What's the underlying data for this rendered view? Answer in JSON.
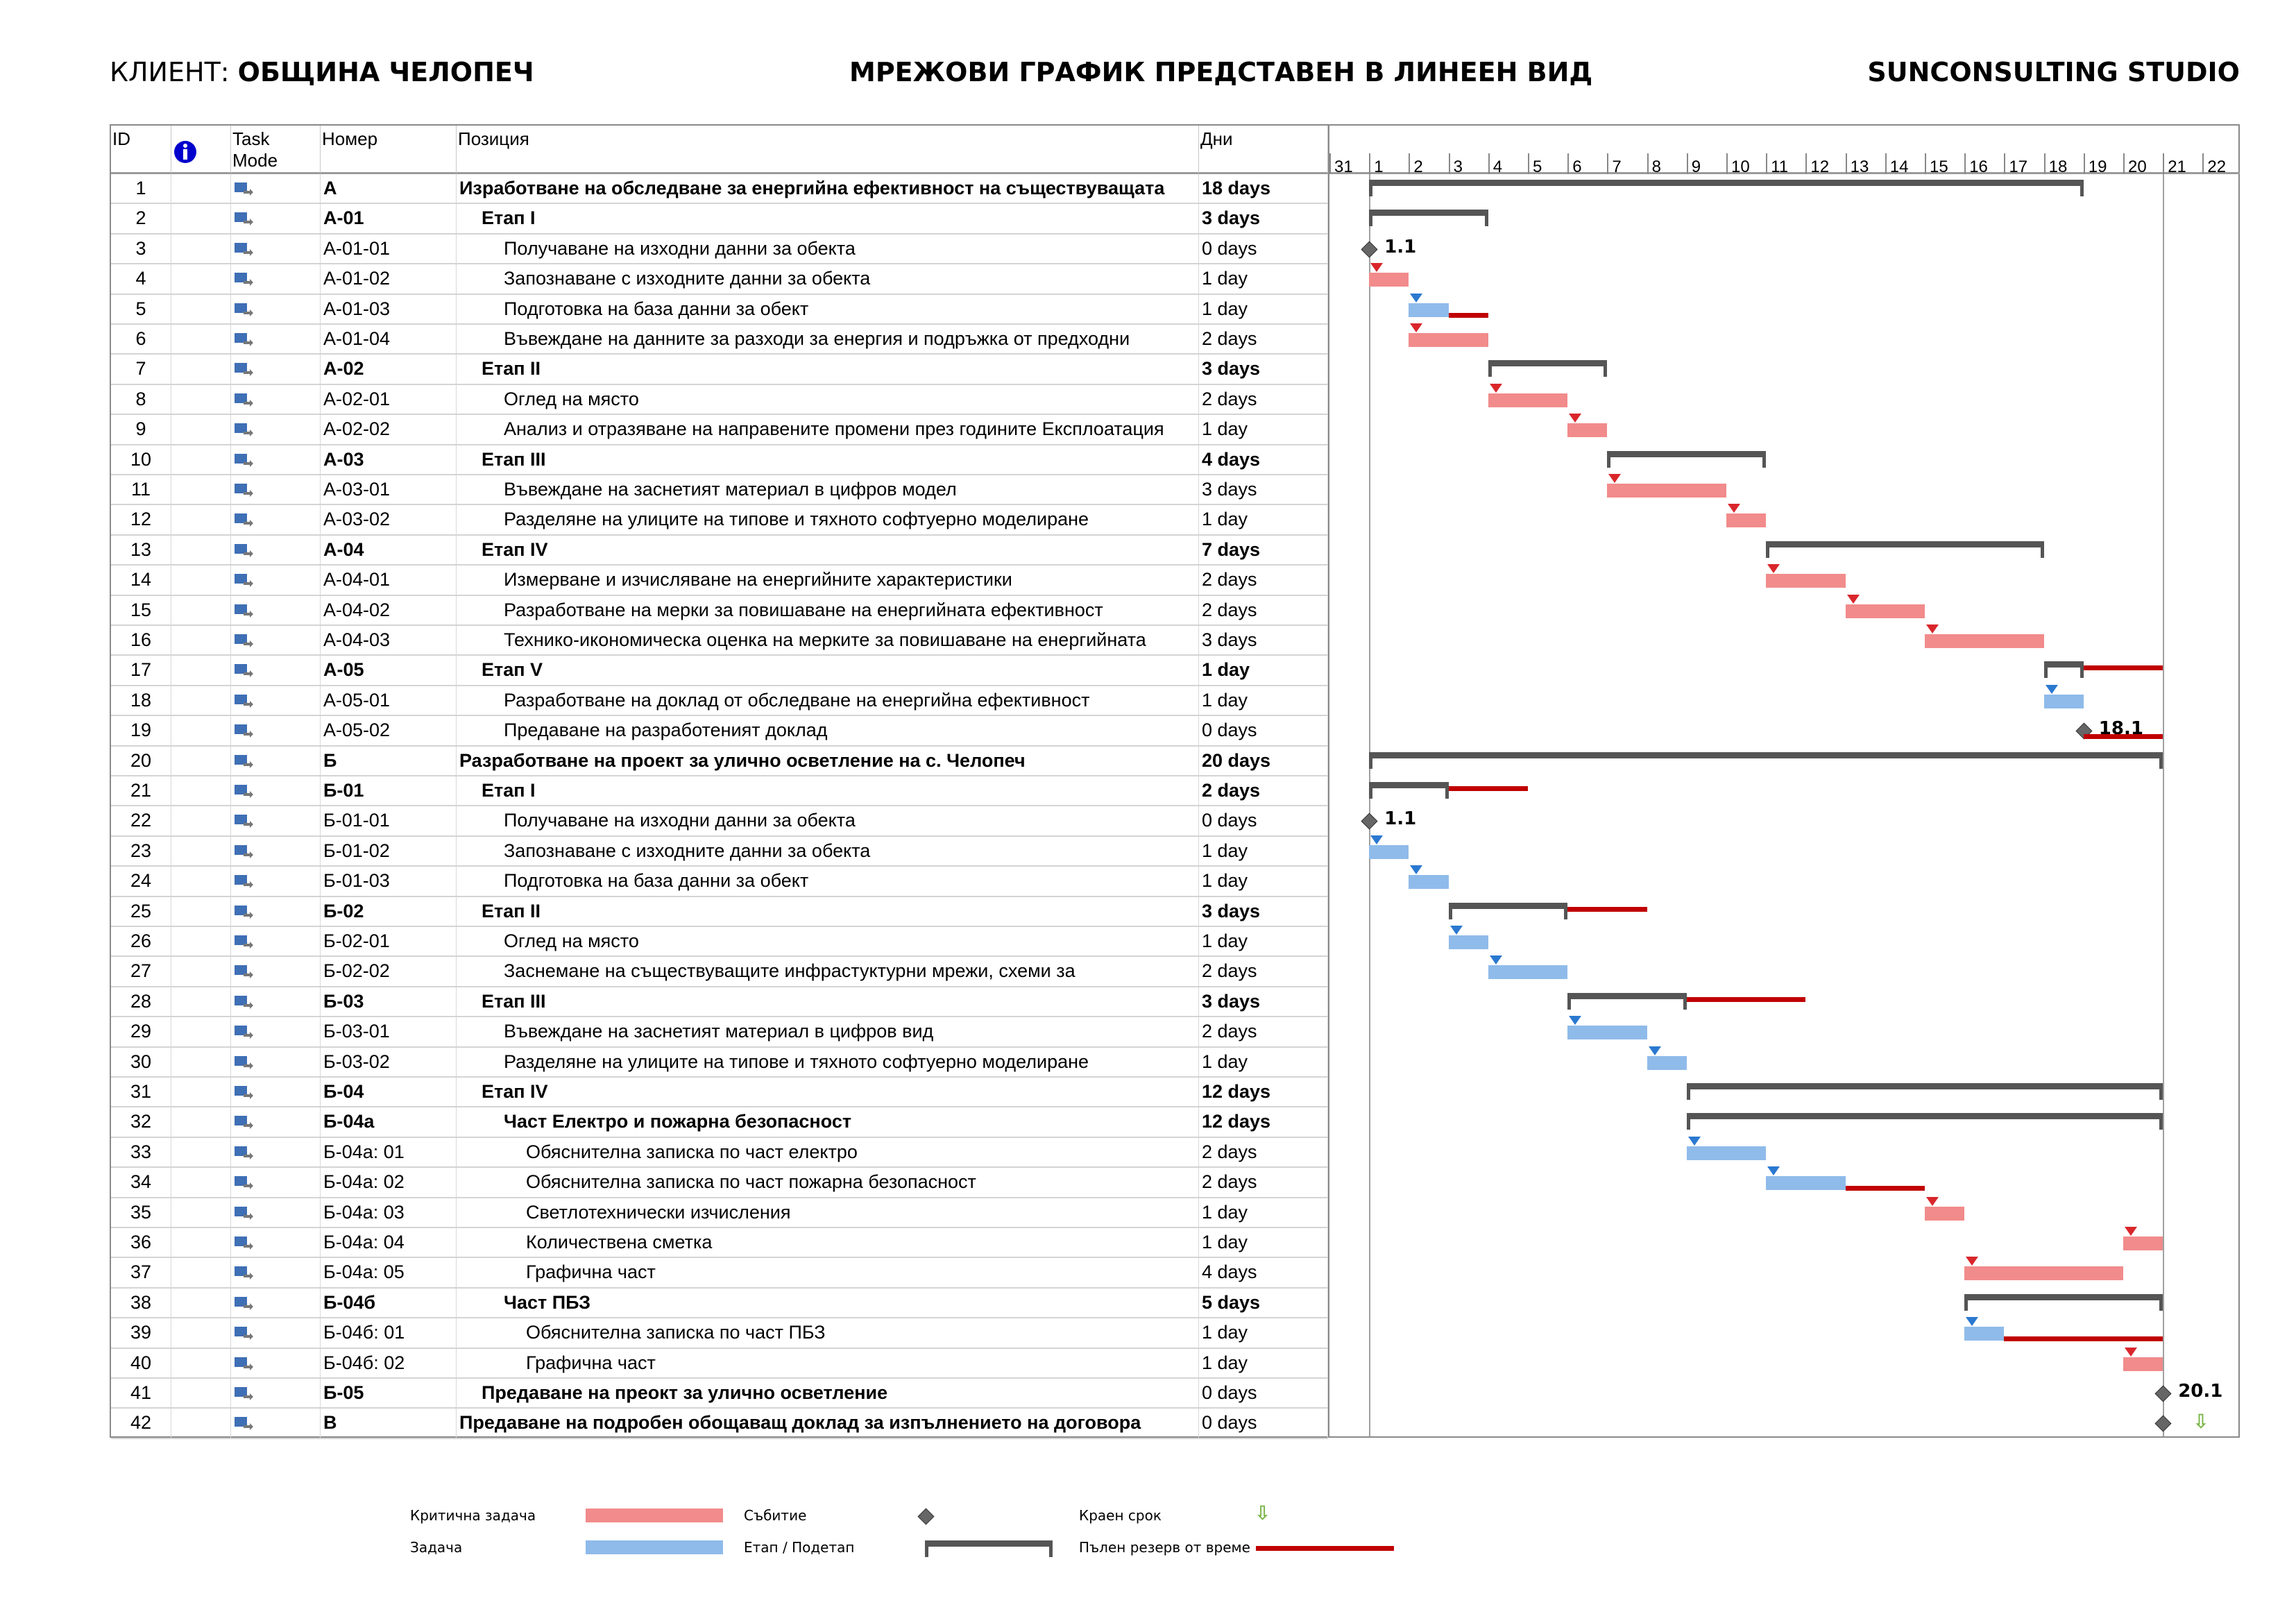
{
  "header": {
    "client_prefix": "КЛИЕНТ: ",
    "client_name": "ОБЩИНА ЧЕЛОПЕЧ",
    "center_title": "МРЕЖОВИ ГРАФИК ПРЕДСТАВЕН В ЛИНЕЕН ВИД",
    "company": "SUNCONSULTING STUDIO"
  },
  "columns": {
    "id": "ID",
    "task_mode": "Task Mode",
    "number": "Номер",
    "position": "Позиция",
    "days": "Дни"
  },
  "timescale": [
    "31",
    "1",
    "2",
    "3",
    "4",
    "5",
    "6",
    "7",
    "8",
    "9",
    "10",
    "11",
    "12",
    "13",
    "14",
    "15",
    "16",
    "17",
    "18",
    "19",
    "20",
    "21",
    "22"
  ],
  "colors": {
    "critical": "#f28b8b",
    "task": "#8fbbea",
    "summary": "#555555",
    "slack": "#c00000",
    "deadline": "#7ab648",
    "info": "#0000cc"
  },
  "rows": [
    {
      "id": "1",
      "num": "А",
      "name": "Изработване на обследване за енергийна ефективност на съществуващата",
      "days": "18 days",
      "level": 0,
      "bold": true,
      "bar": {
        "type": "summary",
        "start": 1,
        "end": 19
      }
    },
    {
      "id": "2",
      "num": "А-01",
      "name": "Етап I",
      "days": "3 days",
      "level": 1,
      "bold": true,
      "bar": {
        "type": "summary",
        "start": 1,
        "end": 4
      }
    },
    {
      "id": "3",
      "num": "А-01-01",
      "name": "Получаване на изходни данни за обекта",
      "days": "0 days",
      "level": 2,
      "bold": false,
      "bar": {
        "type": "milestone",
        "start": 1,
        "label": "1.1"
      }
    },
    {
      "id": "4",
      "num": "А-01-02",
      "name": "Запознаване с изходните данни за обекта",
      "days": "1 day",
      "level": 2,
      "bold": false,
      "bar": {
        "type": "critical",
        "start": 1,
        "end": 2
      }
    },
    {
      "id": "5",
      "num": "А-01-03",
      "name": "Подготовка на база данни за обект",
      "days": "1 day",
      "level": 2,
      "bold": false,
      "bar": {
        "type": "task",
        "start": 2,
        "end": 3,
        "slack_end": 4
      }
    },
    {
      "id": "6",
      "num": "А-01-04",
      "name": "Въвеждане на данните за разходи за енергия и подръжка от предходни",
      "days": "2 days",
      "level": 2,
      "bold": false,
      "bar": {
        "type": "critical",
        "start": 2,
        "end": 4
      }
    },
    {
      "id": "7",
      "num": "А-02",
      "name": "Етап II",
      "days": "3 days",
      "level": 1,
      "bold": true,
      "bar": {
        "type": "summary",
        "start": 4,
        "end": 7
      }
    },
    {
      "id": "8",
      "num": "А-02-01",
      "name": "Оглед на място",
      "days": "2 days",
      "level": 2,
      "bold": false,
      "bar": {
        "type": "critical",
        "start": 4,
        "end": 6
      }
    },
    {
      "id": "9",
      "num": "А-02-02",
      "name": "Анализ и отразяване на направените промени през годините Експлоатация",
      "days": "1 day",
      "level": 2,
      "bold": false,
      "bar": {
        "type": "critical",
        "start": 6,
        "end": 7
      }
    },
    {
      "id": "10",
      "num": "А-03",
      "name": "Етап III",
      "days": "4 days",
      "level": 1,
      "bold": true,
      "bar": {
        "type": "summary",
        "start": 7,
        "end": 11
      }
    },
    {
      "id": "11",
      "num": "А-03-01",
      "name": "Въвеждане на заснетият материал в цифров модел",
      "days": "3 days",
      "level": 2,
      "bold": false,
      "bar": {
        "type": "critical",
        "start": 7,
        "end": 10
      }
    },
    {
      "id": "12",
      "num": "А-03-02",
      "name": "Разделяне на улиците на типове и тяхното софтуерно моделиране",
      "days": "1 day",
      "level": 2,
      "bold": false,
      "bar": {
        "type": "critical",
        "start": 10,
        "end": 11
      }
    },
    {
      "id": "13",
      "num": "А-04",
      "name": "Етап IV",
      "days": "7 days",
      "level": 1,
      "bold": true,
      "bar": {
        "type": "summary",
        "start": 11,
        "end": 18
      }
    },
    {
      "id": "14",
      "num": "А-04-01",
      "name": "Измерване и изчисляване на енергийните характеристики",
      "days": "2 days",
      "level": 2,
      "bold": false,
      "bar": {
        "type": "critical",
        "start": 11,
        "end": 13
      }
    },
    {
      "id": "15",
      "num": "А-04-02",
      "name": "Разработване на мерки за повишаване на енергийната ефективност",
      "days": "2 days",
      "level": 2,
      "bold": false,
      "bar": {
        "type": "critical",
        "start": 13,
        "end": 15
      }
    },
    {
      "id": "16",
      "num": "А-04-03",
      "name": "Технико-икономическа оценка на мерките за повишаване на енергийната",
      "days": "3 days",
      "level": 2,
      "bold": false,
      "bar": {
        "type": "critical",
        "start": 15,
        "end": 18
      }
    },
    {
      "id": "17",
      "num": "А-05",
      "name": "Етап V",
      "days": "1 day",
      "level": 1,
      "bold": true,
      "bar": {
        "type": "summary",
        "start": 18,
        "end": 19,
        "slack_end": 21
      }
    },
    {
      "id": "18",
      "num": "А-05-01",
      "name": "Разработване на доклад от обследване на енергийна ефективност",
      "days": "1 day",
      "level": 2,
      "bold": false,
      "bar": {
        "type": "task",
        "start": 18,
        "end": 19
      }
    },
    {
      "id": "19",
      "num": "А-05-02",
      "name": "Предаване на разработеният доклад",
      "days": "0 days",
      "level": 2,
      "bold": false,
      "bar": {
        "type": "milestone",
        "start": 19,
        "label": "18.1",
        "slack_end": 21
      }
    },
    {
      "id": "20",
      "num": "Б",
      "name": "Разработване на проект за улично осветление на с. Челопеч",
      "days": "20 days",
      "level": 0,
      "bold": true,
      "bar": {
        "type": "summary",
        "start": 1,
        "end": 21
      }
    },
    {
      "id": "21",
      "num": "Б-01",
      "name": "Етап I",
      "days": "2 days",
      "level": 1,
      "bold": true,
      "bar": {
        "type": "summary",
        "start": 1,
        "end": 3,
        "slack_end": 5
      }
    },
    {
      "id": "22",
      "num": "Б-01-01",
      "name": "Получаване на изходни данни за обекта",
      "days": "0 days",
      "level": 2,
      "bold": false,
      "bar": {
        "type": "milestone",
        "start": 1,
        "label": "1.1"
      }
    },
    {
      "id": "23",
      "num": "Б-01-02",
      "name": "Запознаване с изходните данни за обекта",
      "days": "1 day",
      "level": 2,
      "bold": false,
      "bar": {
        "type": "task",
        "start": 1,
        "end": 2
      }
    },
    {
      "id": "24",
      "num": "Б-01-03",
      "name": "Подготовка на база данни за обект",
      "days": "1 day",
      "level": 2,
      "bold": false,
      "bar": {
        "type": "task",
        "start": 2,
        "end": 3
      }
    },
    {
      "id": "25",
      "num": "Б-02",
      "name": "Етап II",
      "days": "3 days",
      "level": 1,
      "bold": true,
      "bar": {
        "type": "summary",
        "start": 3,
        "end": 6,
        "slack_end": 8
      }
    },
    {
      "id": "26",
      "num": "Б-02-01",
      "name": "Оглед на място",
      "days": "1 day",
      "level": 2,
      "bold": false,
      "bar": {
        "type": "task",
        "start": 3,
        "end": 4
      }
    },
    {
      "id": "27",
      "num": "Б-02-02",
      "name": "Заснемане на съществуващите инфрастуктурни мрежи, схеми за",
      "days": "2 days",
      "level": 2,
      "bold": false,
      "bar": {
        "type": "task",
        "start": 4,
        "end": 6
      }
    },
    {
      "id": "28",
      "num": "Б-03",
      "name": "Етап III",
      "days": "3 days",
      "level": 1,
      "bold": true,
      "bar": {
        "type": "summary",
        "start": 6,
        "end": 9,
        "slack_end": 12
      }
    },
    {
      "id": "29",
      "num": "Б-03-01",
      "name": "Въвеждане на заснетият материал в цифров вид",
      "days": "2 days",
      "level": 2,
      "bold": false,
      "bar": {
        "type": "task",
        "start": 6,
        "end": 8
      }
    },
    {
      "id": "30",
      "num": "Б-03-02",
      "name": "Разделяне на улиците на типове и тяхното софтуерно моделиране",
      "days": "1 day",
      "level": 2,
      "bold": false,
      "bar": {
        "type": "task",
        "start": 8,
        "end": 9
      }
    },
    {
      "id": "31",
      "num": "Б-04",
      "name": "Етап IV",
      "days": "12 days",
      "level": 1,
      "bold": true,
      "bar": {
        "type": "summary",
        "start": 9,
        "end": 21
      }
    },
    {
      "id": "32",
      "num": "Б-04а",
      "name": "Част Електро и пожарна безопасност",
      "days": "12 days",
      "level": 2,
      "bold": true,
      "bar": {
        "type": "summary",
        "start": 9,
        "end": 21
      }
    },
    {
      "id": "33",
      "num": "Б-04а: 01",
      "name": "Обяснителна записка по част електро",
      "days": "2 days",
      "level": 3,
      "bold": false,
      "bar": {
        "type": "task",
        "start": 9,
        "end": 11
      }
    },
    {
      "id": "34",
      "num": "Б-04а: 02",
      "name": "Обяснителна записка по част пожарна безопасност",
      "days": "2 days",
      "level": 3,
      "bold": false,
      "bar": {
        "type": "task",
        "start": 11,
        "end": 13,
        "slack_end": 15
      }
    },
    {
      "id": "35",
      "num": "Б-04а: 03",
      "name": "Светлотехнически изчисления",
      "days": "1 day",
      "level": 3,
      "bold": false,
      "bar": {
        "type": "critical",
        "start": 15,
        "end": 16
      }
    },
    {
      "id": "36",
      "num": "Б-04а: 04",
      "name": "Количествена сметка",
      "days": "1 day",
      "level": 3,
      "bold": false,
      "bar": {
        "type": "critical",
        "start": 20,
        "end": 21
      }
    },
    {
      "id": "37",
      "num": "Б-04а: 05",
      "name": "Графична част",
      "days": "4 days",
      "level": 3,
      "bold": false,
      "bar": {
        "type": "critical",
        "start": 16,
        "end": 20
      }
    },
    {
      "id": "38",
      "num": "Б-04б",
      "name": "Част ПБЗ",
      "days": "5 days",
      "level": 2,
      "bold": true,
      "bar": {
        "type": "summary",
        "start": 16,
        "end": 21
      }
    },
    {
      "id": "39",
      "num": "Б-04б: 01",
      "name": "Обяснителна записка по част ПБЗ",
      "days": "1 day",
      "level": 3,
      "bold": false,
      "bar": {
        "type": "task",
        "start": 16,
        "end": 17,
        "slack_end": 21
      }
    },
    {
      "id": "40",
      "num": "Б-04б: 02",
      "name": "Графична част",
      "days": "1 day",
      "level": 3,
      "bold": false,
      "bar": {
        "type": "critical",
        "start": 20,
        "end": 21
      }
    },
    {
      "id": "41",
      "num": "Б-05",
      "name": "Предаване на преокт за улично осветление",
      "days": "0 days",
      "level": 1,
      "bold": true,
      "bar": {
        "type": "milestone",
        "start": 21,
        "label": "20.1"
      }
    },
    {
      "id": "42",
      "num": "В",
      "name": "Предаване на подробен обощаващ доклад за изпълнението на договора",
      "days": "0 days",
      "level": 0,
      "bold": true,
      "bar": {
        "type": "milestone",
        "start": 21,
        "deadline": 22
      }
    }
  ],
  "legend": {
    "critical": "Критична задача",
    "task": "Задача",
    "milestone": "Събитие",
    "summary": "Етап / Подетап",
    "deadline": "Краен срок",
    "slack": "Пълен резерв от време"
  }
}
